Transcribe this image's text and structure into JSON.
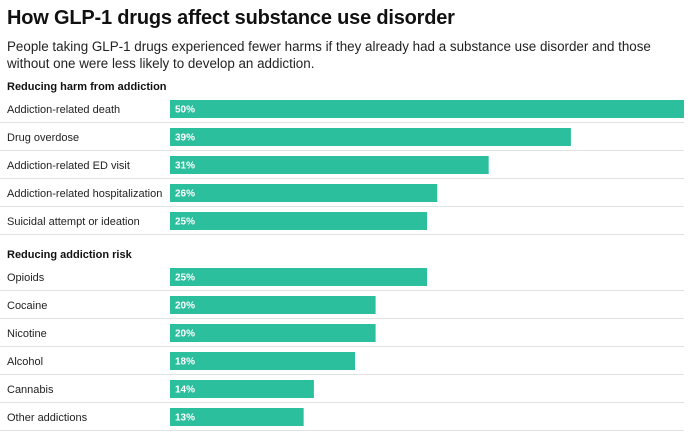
{
  "title": "How GLP-1 drugs affect substance use disorder",
  "subtitle": "People taking GLP-1 drugs experienced fewer harms if they already had a substance use disorder and those without one were less likely to develop an addiction.",
  "colors": {
    "bar": "#2bbf9d",
    "label_in_bar": "#ffffff",
    "separator": "#e2e2e2"
  },
  "chart_data": {
    "type": "bar",
    "orientation": "horizontal",
    "value_format": "percent",
    "xlim": [
      0,
      50
    ],
    "groups": [
      {
        "name": "Reducing harm from addiction",
        "categories": [
          "Addiction-related death",
          "Drug overdose",
          "Addiction-related ED visit",
          "Addiction-related hospitalization",
          "Suicidal attempt or ideation"
        ],
        "values": [
          50,
          39,
          31,
          26,
          25
        ]
      },
      {
        "name": "Reducing addiction risk",
        "categories": [
          "Opioids",
          "Cocaine",
          "Nicotine",
          "Alcohol",
          "Cannabis",
          "Other addictions"
        ],
        "values": [
          25,
          20,
          20,
          18,
          14,
          13
        ]
      }
    ]
  }
}
